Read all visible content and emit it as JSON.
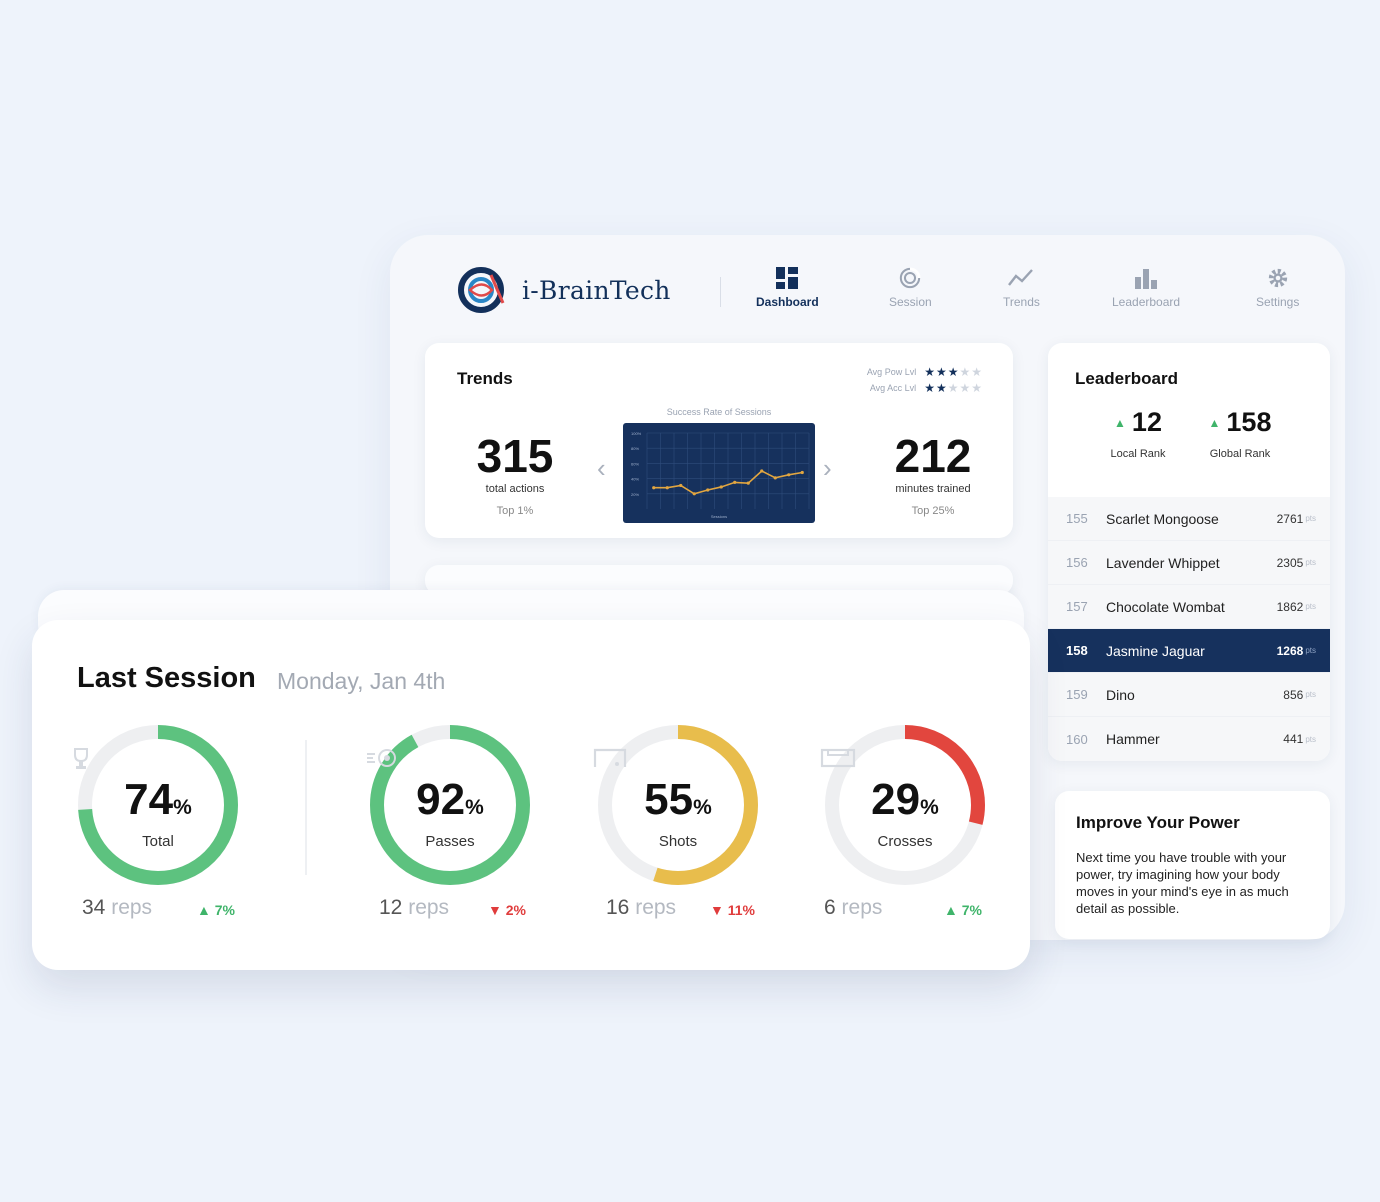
{
  "app": {
    "brand": "i-BrainTech",
    "nav": [
      {
        "label": "Dashboard",
        "icon": "dashboard-icon",
        "active": true
      },
      {
        "label": "Session",
        "icon": "session-icon",
        "active": false
      },
      {
        "label": "Trends",
        "icon": "trends-icon",
        "active": false
      },
      {
        "label": "Leaderboard",
        "icon": "leaderboard-icon",
        "active": false
      },
      {
        "label": "Settings",
        "icon": "gear-icon",
        "active": false
      }
    ]
  },
  "trends": {
    "title": "Trends",
    "pow_label": "Avg Pow Lvl",
    "acc_label": "Avg Acc Lvl",
    "pow_stars": 2.5,
    "acc_stars": 1.5,
    "left_value": "315",
    "left_sub": "total actions",
    "left_tag": "Top 1%",
    "right_value": "212",
    "right_sub": "minutes trained",
    "right_tag": "Top 25%",
    "chart_caption": "Success Rate of Sessions",
    "prev_arrow": "‹",
    "next_arrow": "›"
  },
  "chart_data": {
    "type": "line",
    "title": "Success Rate of Sessions",
    "xlabel": "Sessions",
    "ylabel": "",
    "y_ticks": [
      "100%",
      "80%",
      "60%",
      "40%",
      "20%"
    ],
    "ylim": [
      0,
      100
    ],
    "series": [
      {
        "values": [
          28,
          28,
          31,
          20,
          25,
          29,
          35,
          34,
          50,
          41,
          45,
          48
        ]
      }
    ],
    "grid": true,
    "colors": {
      "line": "#e2a640",
      "bg": "#16315d",
      "grid": "#2f4d7c"
    }
  },
  "leaderboard": {
    "title": "Leaderboard",
    "local_rank": "12",
    "local_label": "Local Rank",
    "global_rank": "158",
    "global_label": "Global Rank",
    "unit": "pts",
    "rows": [
      {
        "rank": "155",
        "name": "Scarlet Mongoose",
        "points": "2761"
      },
      {
        "rank": "156",
        "name": "Lavender Whippet",
        "points": "2305"
      },
      {
        "rank": "157",
        "name": "Chocolate Wombat",
        "points": "1862"
      },
      {
        "rank": "158",
        "name": "Jasmine Jaguar",
        "points": "1268"
      },
      {
        "rank": "159",
        "name": "Dino",
        "points": "856"
      },
      {
        "rank": "160",
        "name": "Hammer",
        "points": "441"
      }
    ]
  },
  "tip": {
    "title": "Improve Your Power",
    "body": "Next time you have trouble with your power, try imagining how your body moves in your mind's eye in as much detail as possible."
  },
  "session": {
    "title": "Last Session",
    "date": "Monday, Jan 4th",
    "pct_symbol": "%",
    "reps_word": "reps",
    "metrics": [
      {
        "value": "74",
        "fraction": 0.74,
        "name": "Total",
        "reps": "34",
        "delta": "7%",
        "dir": "up",
        "color": "#5dc27f",
        "icon": "trophy-icon"
      },
      {
        "value": "92",
        "fraction": 0.92,
        "name": "Passes",
        "reps": "12",
        "delta": "2%",
        "dir": "down",
        "color": "#5dc27f",
        "icon": "ball-icon"
      },
      {
        "value": "55",
        "fraction": 0.55,
        "name": "Shots",
        "reps": "16",
        "delta": "11%",
        "dir": "down",
        "color": "#e8bd4c",
        "icon": "goal-icon"
      },
      {
        "value": "29",
        "fraction": 0.29,
        "name": "Crosses",
        "reps": "6",
        "delta": "7%",
        "dir": "up",
        "color": "#e2463e",
        "icon": "box-icon"
      }
    ]
  }
}
